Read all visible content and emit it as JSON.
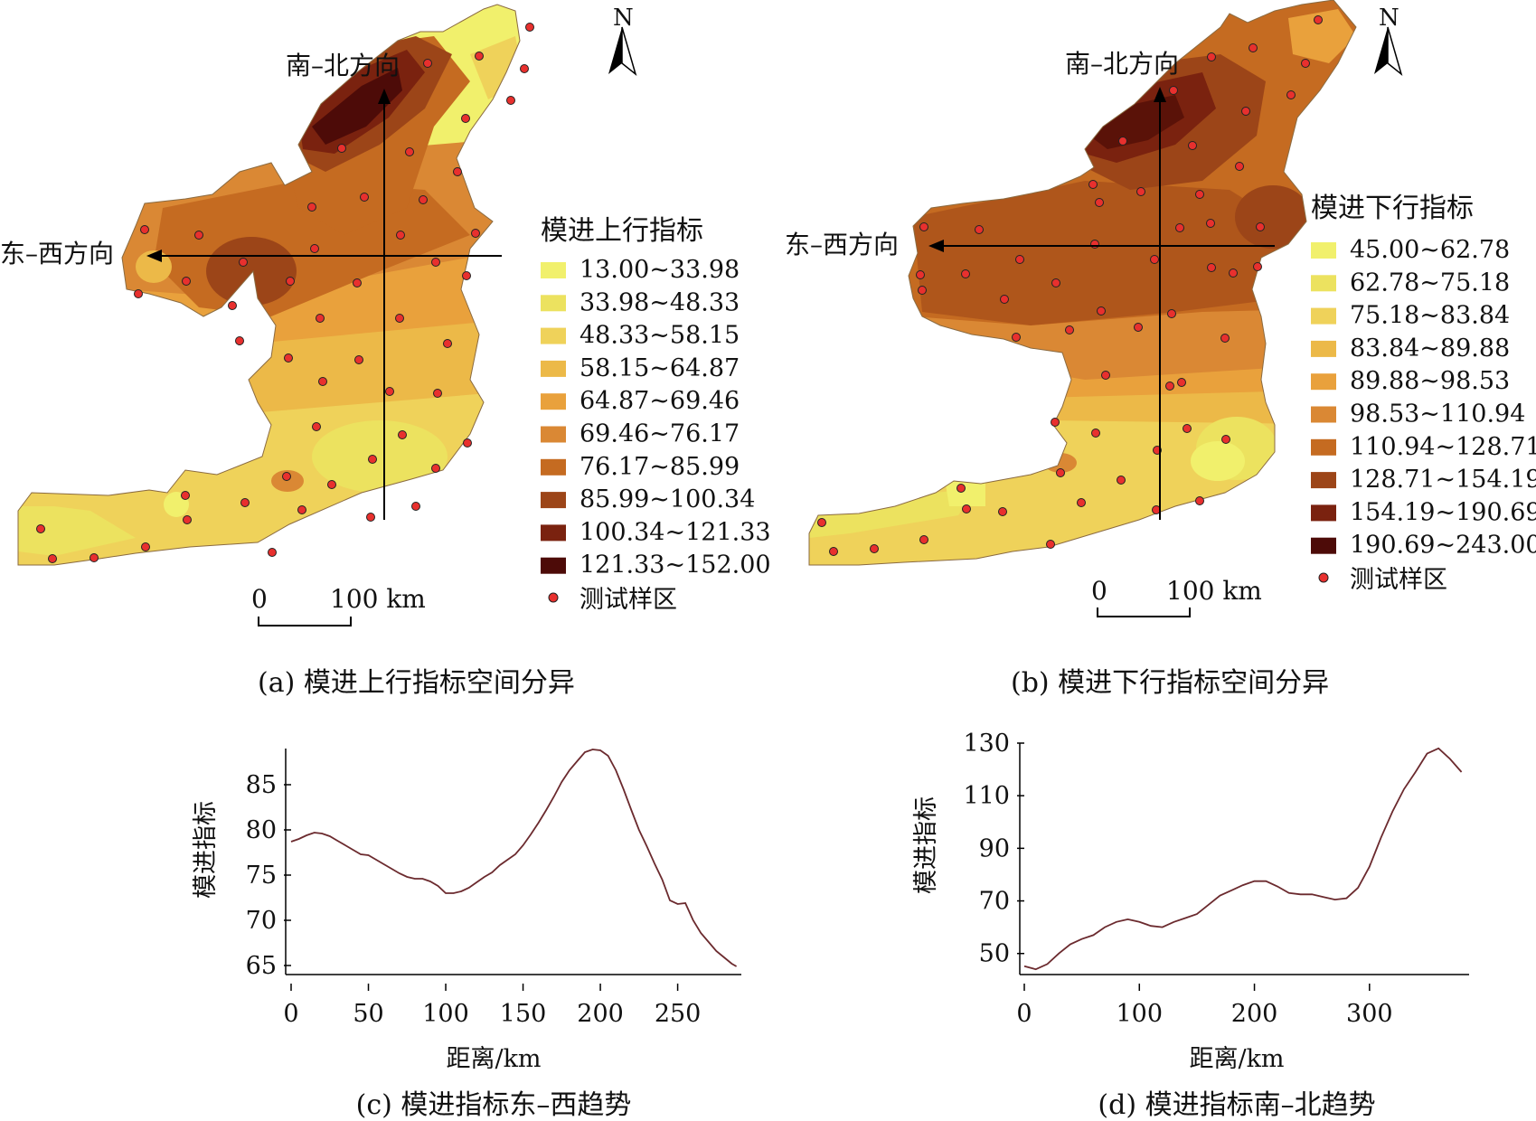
{
  "maps": [
    {
      "id": "a",
      "caption": "(a) 模进上行指标空间分异",
      "legend_title": "模进上行指标",
      "legend_items": [
        {
          "label": "13.00~33.98",
          "color": "#f1f06c"
        },
        {
          "label": "33.98~48.33",
          "color": "#ece25f"
        },
        {
          "label": "48.33~58.15",
          "color": "#efd25a"
        },
        {
          "label": "58.15~64.87",
          "color": "#ecb948"
        },
        {
          "label": "64.87~69.46",
          "color": "#e9a13c"
        },
        {
          "label": "69.46~76.17",
          "color": "#da8834"
        },
        {
          "label": "76.17~85.99",
          "color": "#c56b21"
        },
        {
          "label": "85.99~100.34",
          "color": "#9c4518"
        },
        {
          "label": "100.34~121.33",
          "color": "#7a220f"
        },
        {
          "label": "121.33~152.00",
          "color": "#4d0b08"
        }
      ],
      "sample_label": "测试样区",
      "north": "N",
      "ns_label": "南–北方向",
      "ew_label": "东–西方向",
      "scale_zero": "0",
      "scale_label": "100 km"
    },
    {
      "id": "b",
      "caption": "(b) 模进下行指标空间分异",
      "legend_title": "模进下行指标",
      "legend_items": [
        {
          "label": "45.00~62.78",
          "color": "#f1f06c"
        },
        {
          "label": "62.78~75.18",
          "color": "#ece25f"
        },
        {
          "label": "75.18~83.84",
          "color": "#efd25a"
        },
        {
          "label": "83.84~89.88",
          "color": "#ecb948"
        },
        {
          "label": "89.88~98.53",
          "color": "#e9a13c"
        },
        {
          "label": "98.53~110.94",
          "color": "#da8834"
        },
        {
          "label": "110.94~128.71",
          "color": "#c56b21"
        },
        {
          "label": "128.71~154.19",
          "color": "#9c4518"
        },
        {
          "label": "154.19~190.69",
          "color": "#7a220f"
        },
        {
          "label": "190.69~243.00",
          "color": "#4d0b08"
        }
      ],
      "sample_label": "测试样区",
      "north": "N",
      "ns_label": "南–北方向",
      "ew_label": "东–西方向",
      "scale_zero": "0",
      "scale_label": "100 km"
    }
  ],
  "chart_data": [
    {
      "type": "line",
      "caption": "(c) 模进指标东–西趋势",
      "xlabel": "距离/km",
      "ylabel": "模进指标",
      "xlim": [
        0,
        290
      ],
      "ylim": [
        64,
        89
      ],
      "xticks": [
        0,
        50,
        100,
        150,
        200,
        250
      ],
      "yticks": [
        65,
        70,
        75,
        80,
        85
      ],
      "line_color": "#6b2a2e",
      "series": [
        {
          "x": [
            0,
            5,
            10,
            15,
            20,
            25,
            30,
            35,
            40,
            45,
            50,
            55,
            60,
            65,
            70,
            75,
            80,
            85,
            90,
            95,
            100,
            105,
            110,
            115,
            120,
            125,
            130,
            135,
            140,
            145,
            150,
            155,
            160,
            165,
            170,
            175,
            180,
            185,
            190,
            195,
            200,
            205,
            210,
            215,
            220,
            225,
            230,
            235,
            240,
            245,
            250,
            255,
            260,
            265,
            270,
            275,
            280,
            285,
            288
          ],
          "y": [
            78.7,
            79.0,
            79.4,
            79.7,
            79.6,
            79.3,
            78.8,
            78.3,
            77.8,
            77.3,
            77.2,
            76.7,
            76.2,
            75.7,
            75.2,
            74.8,
            74.6,
            74.6,
            74.3,
            73.8,
            73.0,
            73.0,
            73.2,
            73.6,
            74.2,
            74.8,
            75.3,
            76.1,
            76.7,
            77.3,
            78.3,
            79.5,
            80.8,
            82.2,
            83.7,
            85.3,
            86.6,
            87.6,
            88.6,
            88.9,
            88.8,
            88.2,
            86.6,
            84.5,
            82.2,
            80.0,
            78.2,
            76.3,
            74.5,
            72.2,
            71.8,
            71.9,
            70.0,
            68.6,
            67.6,
            66.6,
            65.9,
            65.2,
            64.9
          ]
        }
      ]
    },
    {
      "type": "line",
      "caption": "(d) 模进指标南–北趋势",
      "xlabel": "距离/km",
      "ylabel": "模进指标",
      "xlim": [
        0,
        385
      ],
      "ylim": [
        42,
        130
      ],
      "xticks": [
        0,
        100,
        200,
        300
      ],
      "yticks": [
        50,
        70,
        90,
        110,
        130
      ],
      "line_color": "#6b2a2e",
      "series": [
        {
          "x": [
            0,
            10,
            20,
            30,
            40,
            50,
            60,
            70,
            80,
            90,
            100,
            110,
            120,
            130,
            140,
            150,
            160,
            170,
            180,
            190,
            200,
            210,
            220,
            230,
            240,
            250,
            260,
            270,
            280,
            290,
            300,
            310,
            320,
            330,
            340,
            350,
            360,
            370,
            380
          ],
          "y": [
            45.2,
            44.0,
            46.0,
            50.0,
            53.5,
            55.5,
            57.0,
            60.0,
            62.0,
            63.0,
            62.0,
            60.5,
            60.0,
            62.0,
            63.5,
            65.0,
            68.5,
            72.0,
            74.0,
            76.0,
            77.5,
            77.5,
            75.5,
            73.0,
            72.5,
            72.5,
            71.5,
            70.5,
            71.0,
            75.0,
            83.0,
            94.0,
            104.0,
            112.5,
            119.0,
            126.0,
            128.0,
            124.0,
            119.0
          ]
        }
      ]
    }
  ]
}
